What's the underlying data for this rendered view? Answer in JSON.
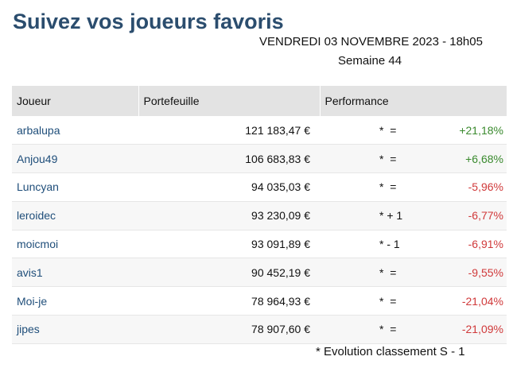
{
  "title": "Suivez vos joueurs favoris",
  "date": "VENDREDI 03 NOVEMBRE 2023 - 18h05",
  "week": "Semaine 44",
  "table": {
    "headers": [
      "Joueur",
      "Portefeuille",
      "Performance"
    ],
    "rows": [
      {
        "player": "arbalupa",
        "wallet": "121 183,47 €",
        "rank_change": "*  =",
        "perf": "+21,18%",
        "trend": "positive"
      },
      {
        "player": "Anjou49",
        "wallet": "106 683,83 €",
        "rank_change": "*  =",
        "perf": "+6,68%",
        "trend": "positive"
      },
      {
        "player": "Luncyan",
        "wallet": "94 035,03 €",
        "rank_change": "*  =",
        "perf": "-5,96%",
        "trend": "negative"
      },
      {
        "player": "leroidec",
        "wallet": "93 230,09 €",
        "rank_change": "* + 1",
        "perf": "-6,77%",
        "trend": "negative"
      },
      {
        "player": "moicmoi",
        "wallet": "93 091,89 €",
        "rank_change": "* - 1",
        "perf": "-6,91%",
        "trend": "negative"
      },
      {
        "player": "avis1",
        "wallet": "90 452,19 €",
        "rank_change": "*  =",
        "perf": "-9,55%",
        "trend": "negative"
      },
      {
        "player": "Moi-je",
        "wallet": "78 964,93 €",
        "rank_change": "*  =",
        "perf": "-21,04%",
        "trend": "negative"
      },
      {
        "player": "jipes",
        "wallet": "78 907,60 €",
        "rank_change": "*  =",
        "perf": "-21,09%",
        "trend": "negative"
      }
    ]
  },
  "footnote": "* Evolution classement S - 1",
  "colors": {
    "title": "#2b4d6e",
    "player_link": "#1f4e7a",
    "positive": "#3a8a2e",
    "negative": "#d0393a",
    "header_bg": "#e3e3e3"
  }
}
